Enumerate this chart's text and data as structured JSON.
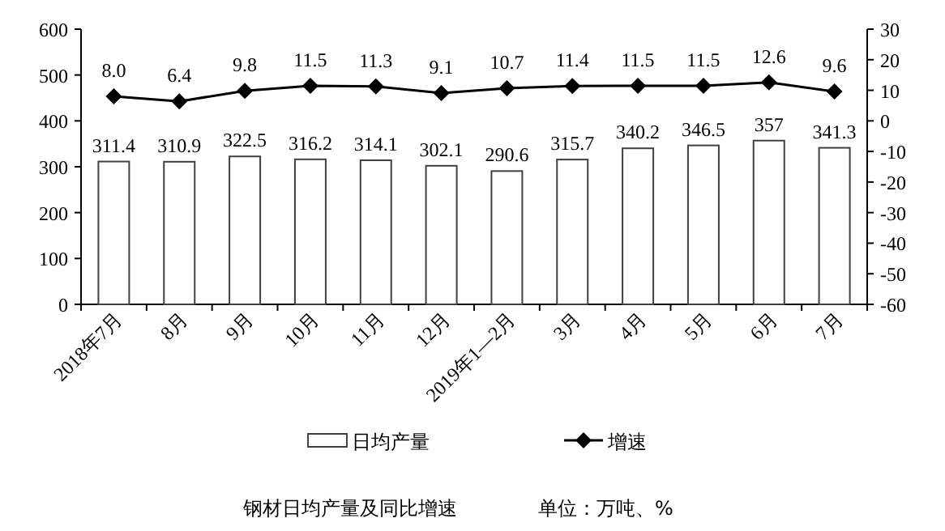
{
  "chart_data": {
    "type": "bar",
    "title": "钢材日均产量及同比增速",
    "subtitle": "单位：万吨、%",
    "categories": [
      "2018年7月",
      "8月",
      "9月",
      "10月",
      "11月",
      "12月",
      "2019年1—2月",
      "3月",
      "4月",
      "5月",
      "6月",
      "7月"
    ],
    "series": [
      {
        "name": "日均产量",
        "color": "#ffffff",
        "values": [
          311.4,
          310.9,
          322.5,
          316.2,
          314.1,
          302.1,
          290.6,
          315.7,
          340.2,
          346.5,
          357,
          341.3
        ],
        "value_labels": [
          "311.4",
          "310.9",
          "322.5",
          "316.2",
          "314.1",
          "302.1",
          "290.6",
          "315.7",
          "340.2",
          "346.5",
          "357",
          "341.3"
        ]
      },
      {
        "name": "增速",
        "type": "line",
        "axis": "y2",
        "color": "#000000",
        "values": [
          8.0,
          6.4,
          9.8,
          11.5,
          11.3,
          9.1,
          10.7,
          11.4,
          11.5,
          11.5,
          12.6,
          9.6
        ],
        "value_labels": [
          "8.0",
          "6.4",
          "9.8",
          "11.5",
          "11.3",
          "9.1",
          "10.7",
          "11.4",
          "11.5",
          "11.5",
          "12.6",
          "9.6"
        ]
      }
    ],
    "ylim": [
      0,
      600
    ],
    "yticks": [
      0,
      100,
      200,
      300,
      400,
      500,
      600
    ],
    "y2lim": [
      -60,
      30
    ],
    "y2ticks": [
      -60,
      -50,
      -40,
      -30,
      -20,
      -10,
      0,
      10,
      20,
      30
    ],
    "marker": "diamond",
    "legend": "bottom"
  }
}
